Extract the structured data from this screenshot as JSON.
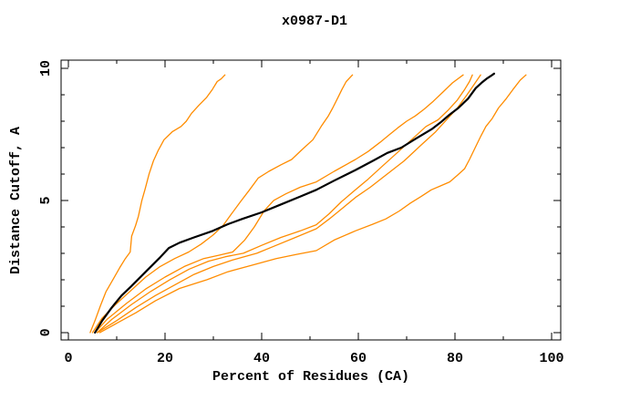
{
  "window": {
    "background": "#ffffff"
  },
  "colors": {
    "orange_series": "#ff8c00",
    "black_series": "#000000",
    "frame": "#000000",
    "text": "#000000"
  },
  "chart_data": {
    "type": "line",
    "title": "x0987-D1",
    "xlabel": "Percent of Residues (CA)",
    "ylabel": "Distance Cutoff, A",
    "xlim": [
      -1.51,
      101.89
    ],
    "ylim": [
      -0.28,
      10.31
    ],
    "xticks_major": [
      0,
      20,
      40,
      60,
      80,
      100
    ],
    "xticks_minor": [
      10,
      30,
      50,
      70,
      90
    ],
    "xtick_labels": [
      "0",
      "20",
      "40",
      "60",
      "80",
      "100"
    ],
    "yticks_major": [
      0,
      5,
      10
    ],
    "yticks_minor": [
      1,
      2,
      3,
      4,
      6,
      7,
      8,
      9
    ],
    "ytick_labels": [
      "0",
      "5",
      "10"
    ],
    "ytick_labels_rotated": true,
    "grid": false,
    "legend": null,
    "frame": "box",
    "tick_direction": "in",
    "series": [
      {
        "name": "orange-1",
        "color": "#ff8c00",
        "width": 1.3,
        "points": [
          [
            4.5,
            0
          ],
          [
            5.5,
            0.45
          ],
          [
            6.6,
            1.0
          ],
          [
            7.8,
            1.55
          ],
          [
            9.2,
            2.0
          ],
          [
            10.6,
            2.45
          ],
          [
            11.8,
            2.8
          ],
          [
            12.8,
            3.05
          ],
          [
            13.1,
            3.65
          ],
          [
            13.9,
            4.05
          ],
          [
            14.5,
            4.4
          ],
          [
            15.2,
            5.0
          ],
          [
            15.9,
            5.45
          ],
          [
            16.7,
            6.0
          ],
          [
            17.6,
            6.5
          ],
          [
            18.6,
            6.9
          ],
          [
            19.8,
            7.3
          ],
          [
            21.5,
            7.6
          ],
          [
            23.3,
            7.8
          ],
          [
            24.4,
            8.0
          ],
          [
            25.5,
            8.3
          ],
          [
            27.0,
            8.6
          ],
          [
            28.6,
            8.9
          ],
          [
            29.8,
            9.2
          ],
          [
            30.8,
            9.5
          ],
          [
            31.6,
            9.6
          ],
          [
            32.4,
            9.75
          ]
        ]
      },
      {
        "name": "orange-2",
        "color": "#ff8c00",
        "width": 1.3,
        "points": [
          [
            5.0,
            0
          ],
          [
            7.0,
            0.55
          ],
          [
            10.0,
            1.1
          ],
          [
            13.0,
            1.6
          ],
          [
            16.0,
            2.1
          ],
          [
            19.0,
            2.5
          ],
          [
            22.0,
            2.8
          ],
          [
            24.9,
            3.05
          ],
          [
            27.5,
            3.35
          ],
          [
            30.0,
            3.7
          ],
          [
            32.0,
            4.05
          ],
          [
            33.8,
            4.5
          ],
          [
            35.6,
            4.95
          ],
          [
            37.5,
            5.4
          ],
          [
            39.3,
            5.85
          ],
          [
            41.5,
            6.1
          ],
          [
            44.0,
            6.35
          ],
          [
            46.2,
            6.55
          ],
          [
            48.2,
            6.9
          ],
          [
            50.6,
            7.3
          ],
          [
            52.3,
            7.8
          ],
          [
            53.8,
            8.2
          ],
          [
            54.7,
            8.5
          ],
          [
            55.8,
            8.9
          ],
          [
            56.6,
            9.2
          ],
          [
            57.5,
            9.5
          ],
          [
            58.8,
            9.75
          ]
        ]
      },
      {
        "name": "orange-3",
        "color": "#ff8c00",
        "width": 1.3,
        "points": [
          [
            5.5,
            0
          ],
          [
            8.0,
            0.5
          ],
          [
            12.0,
            1.1
          ],
          [
            16.0,
            1.65
          ],
          [
            20.0,
            2.1
          ],
          [
            24.0,
            2.5
          ],
          [
            28.0,
            2.8
          ],
          [
            31.0,
            2.92
          ],
          [
            34.0,
            3.05
          ],
          [
            36.5,
            3.5
          ],
          [
            38.5,
            4.0
          ],
          [
            40.5,
            4.6
          ],
          [
            42.5,
            5.0
          ],
          [
            45.0,
            5.25
          ],
          [
            48.0,
            5.5
          ],
          [
            51.3,
            5.7
          ],
          [
            55.0,
            6.1
          ],
          [
            59.4,
            6.55
          ],
          [
            62.0,
            6.85
          ],
          [
            64.5,
            7.2
          ],
          [
            66.5,
            7.5
          ],
          [
            68.2,
            7.75
          ],
          [
            70.0,
            8.0
          ],
          [
            71.8,
            8.2
          ],
          [
            73.6,
            8.45
          ],
          [
            75.5,
            8.75
          ],
          [
            77.5,
            9.1
          ],
          [
            79.5,
            9.45
          ],
          [
            81.7,
            9.75
          ]
        ]
      },
      {
        "name": "orange-4",
        "color": "#ff8c00",
        "width": 1.3,
        "points": [
          [
            6.0,
            0
          ],
          [
            9.0,
            0.5
          ],
          [
            13.0,
            1.05
          ],
          [
            17.0,
            1.55
          ],
          [
            21.0,
            2.0
          ],
          [
            25.0,
            2.4
          ],
          [
            29.0,
            2.7
          ],
          [
            32.5,
            2.87
          ],
          [
            36.2,
            3.0
          ],
          [
            40.0,
            3.3
          ],
          [
            44.0,
            3.6
          ],
          [
            48.0,
            3.85
          ],
          [
            51.3,
            4.08
          ],
          [
            54.0,
            4.5
          ],
          [
            56.5,
            4.95
          ],
          [
            59.4,
            5.4
          ],
          [
            62.0,
            5.8
          ],
          [
            65.0,
            6.3
          ],
          [
            68.0,
            6.8
          ],
          [
            71.0,
            7.3
          ],
          [
            74.0,
            7.8
          ],
          [
            76.5,
            8.05
          ],
          [
            78.5,
            8.4
          ],
          [
            80.5,
            8.8
          ],
          [
            82.0,
            9.2
          ],
          [
            83.0,
            9.5
          ],
          [
            83.6,
            9.75
          ]
        ]
      },
      {
        "name": "orange-5",
        "color": "#ff8c00",
        "width": 1.3,
        "points": [
          [
            6.0,
            0
          ],
          [
            10.0,
            0.45
          ],
          [
            14.0,
            0.95
          ],
          [
            18.0,
            1.4
          ],
          [
            22.0,
            1.8
          ],
          [
            26.0,
            2.2
          ],
          [
            30.0,
            2.5
          ],
          [
            34.0,
            2.75
          ],
          [
            39.0,
            3.0
          ],
          [
            43.0,
            3.3
          ],
          [
            47.0,
            3.6
          ],
          [
            51.3,
            3.93
          ],
          [
            54.0,
            4.3
          ],
          [
            57.0,
            4.75
          ],
          [
            59.4,
            5.11
          ],
          [
            62.5,
            5.5
          ],
          [
            66.0,
            6.0
          ],
          [
            69.5,
            6.5
          ],
          [
            73.0,
            7.1
          ],
          [
            76.0,
            7.6
          ],
          [
            78.5,
            8.1
          ],
          [
            80.5,
            8.5
          ],
          [
            82.5,
            9.0
          ],
          [
            84.0,
            9.4
          ],
          [
            85.3,
            9.75
          ]
        ]
      },
      {
        "name": "orange-6",
        "color": "#ff8c00",
        "width": 1.3,
        "points": [
          [
            6.5,
            0
          ],
          [
            10.0,
            0.35
          ],
          [
            14.0,
            0.75
          ],
          [
            18.0,
            1.2
          ],
          [
            23.0,
            1.67
          ],
          [
            28.7,
            2.0
          ],
          [
            33.0,
            2.3
          ],
          [
            38.0,
            2.55
          ],
          [
            43.0,
            2.8
          ],
          [
            47.0,
            2.95
          ],
          [
            51.3,
            3.1
          ],
          [
            55.0,
            3.5
          ],
          [
            59.4,
            3.85
          ],
          [
            63.0,
            4.1
          ],
          [
            65.7,
            4.3
          ],
          [
            68.5,
            4.6
          ],
          [
            70.8,
            4.9
          ],
          [
            73.0,
            5.15
          ],
          [
            75.1,
            5.4
          ],
          [
            77.0,
            5.55
          ],
          [
            78.9,
            5.7
          ],
          [
            80.5,
            5.95
          ],
          [
            82.0,
            6.2
          ],
          [
            83.0,
            6.55
          ],
          [
            84.2,
            7.0
          ],
          [
            85.4,
            7.45
          ],
          [
            86.4,
            7.8
          ],
          [
            87.7,
            8.1
          ],
          [
            89.0,
            8.5
          ],
          [
            90.6,
            8.85
          ],
          [
            92.0,
            9.2
          ],
          [
            93.5,
            9.55
          ],
          [
            94.7,
            9.75
          ]
        ]
      },
      {
        "name": "black",
        "color": "#000000",
        "width": 2.2,
        "points": [
          [
            5.5,
            0
          ],
          [
            7.0,
            0.45
          ],
          [
            9.0,
            0.95
          ],
          [
            11.0,
            1.4
          ],
          [
            13.0,
            1.75
          ],
          [
            16.0,
            2.3
          ],
          [
            19.0,
            2.85
          ],
          [
            20.8,
            3.2
          ],
          [
            23.0,
            3.4
          ],
          [
            26.0,
            3.6
          ],
          [
            29.9,
            3.85
          ],
          [
            33.0,
            4.1
          ],
          [
            36.0,
            4.3
          ],
          [
            40.0,
            4.55
          ],
          [
            44.0,
            4.85
          ],
          [
            48.0,
            5.15
          ],
          [
            51.3,
            5.4
          ],
          [
            55.0,
            5.75
          ],
          [
            59.4,
            6.15
          ],
          [
            63.0,
            6.5
          ],
          [
            66.0,
            6.8
          ],
          [
            68.9,
            7.0
          ],
          [
            72.0,
            7.35
          ],
          [
            75.2,
            7.7
          ],
          [
            77.0,
            7.95
          ],
          [
            78.9,
            8.25
          ],
          [
            80.7,
            8.5
          ],
          [
            82.7,
            8.85
          ],
          [
            84.3,
            9.25
          ],
          [
            85.5,
            9.45
          ],
          [
            86.5,
            9.6
          ],
          [
            87.5,
            9.72
          ],
          [
            88.1,
            9.8
          ]
        ]
      }
    ]
  }
}
